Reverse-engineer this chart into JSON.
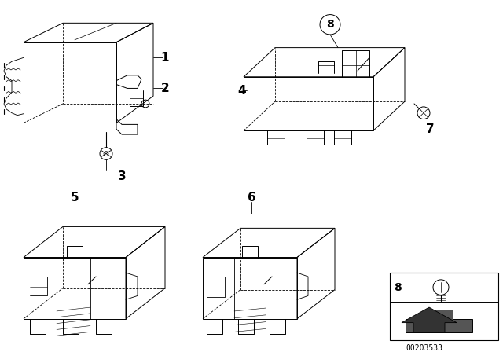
{
  "background_color": "#ffffff",
  "diagram_number": "00203533",
  "lw": 0.7,
  "color": "#000000",
  "dot_color": "#888888"
}
